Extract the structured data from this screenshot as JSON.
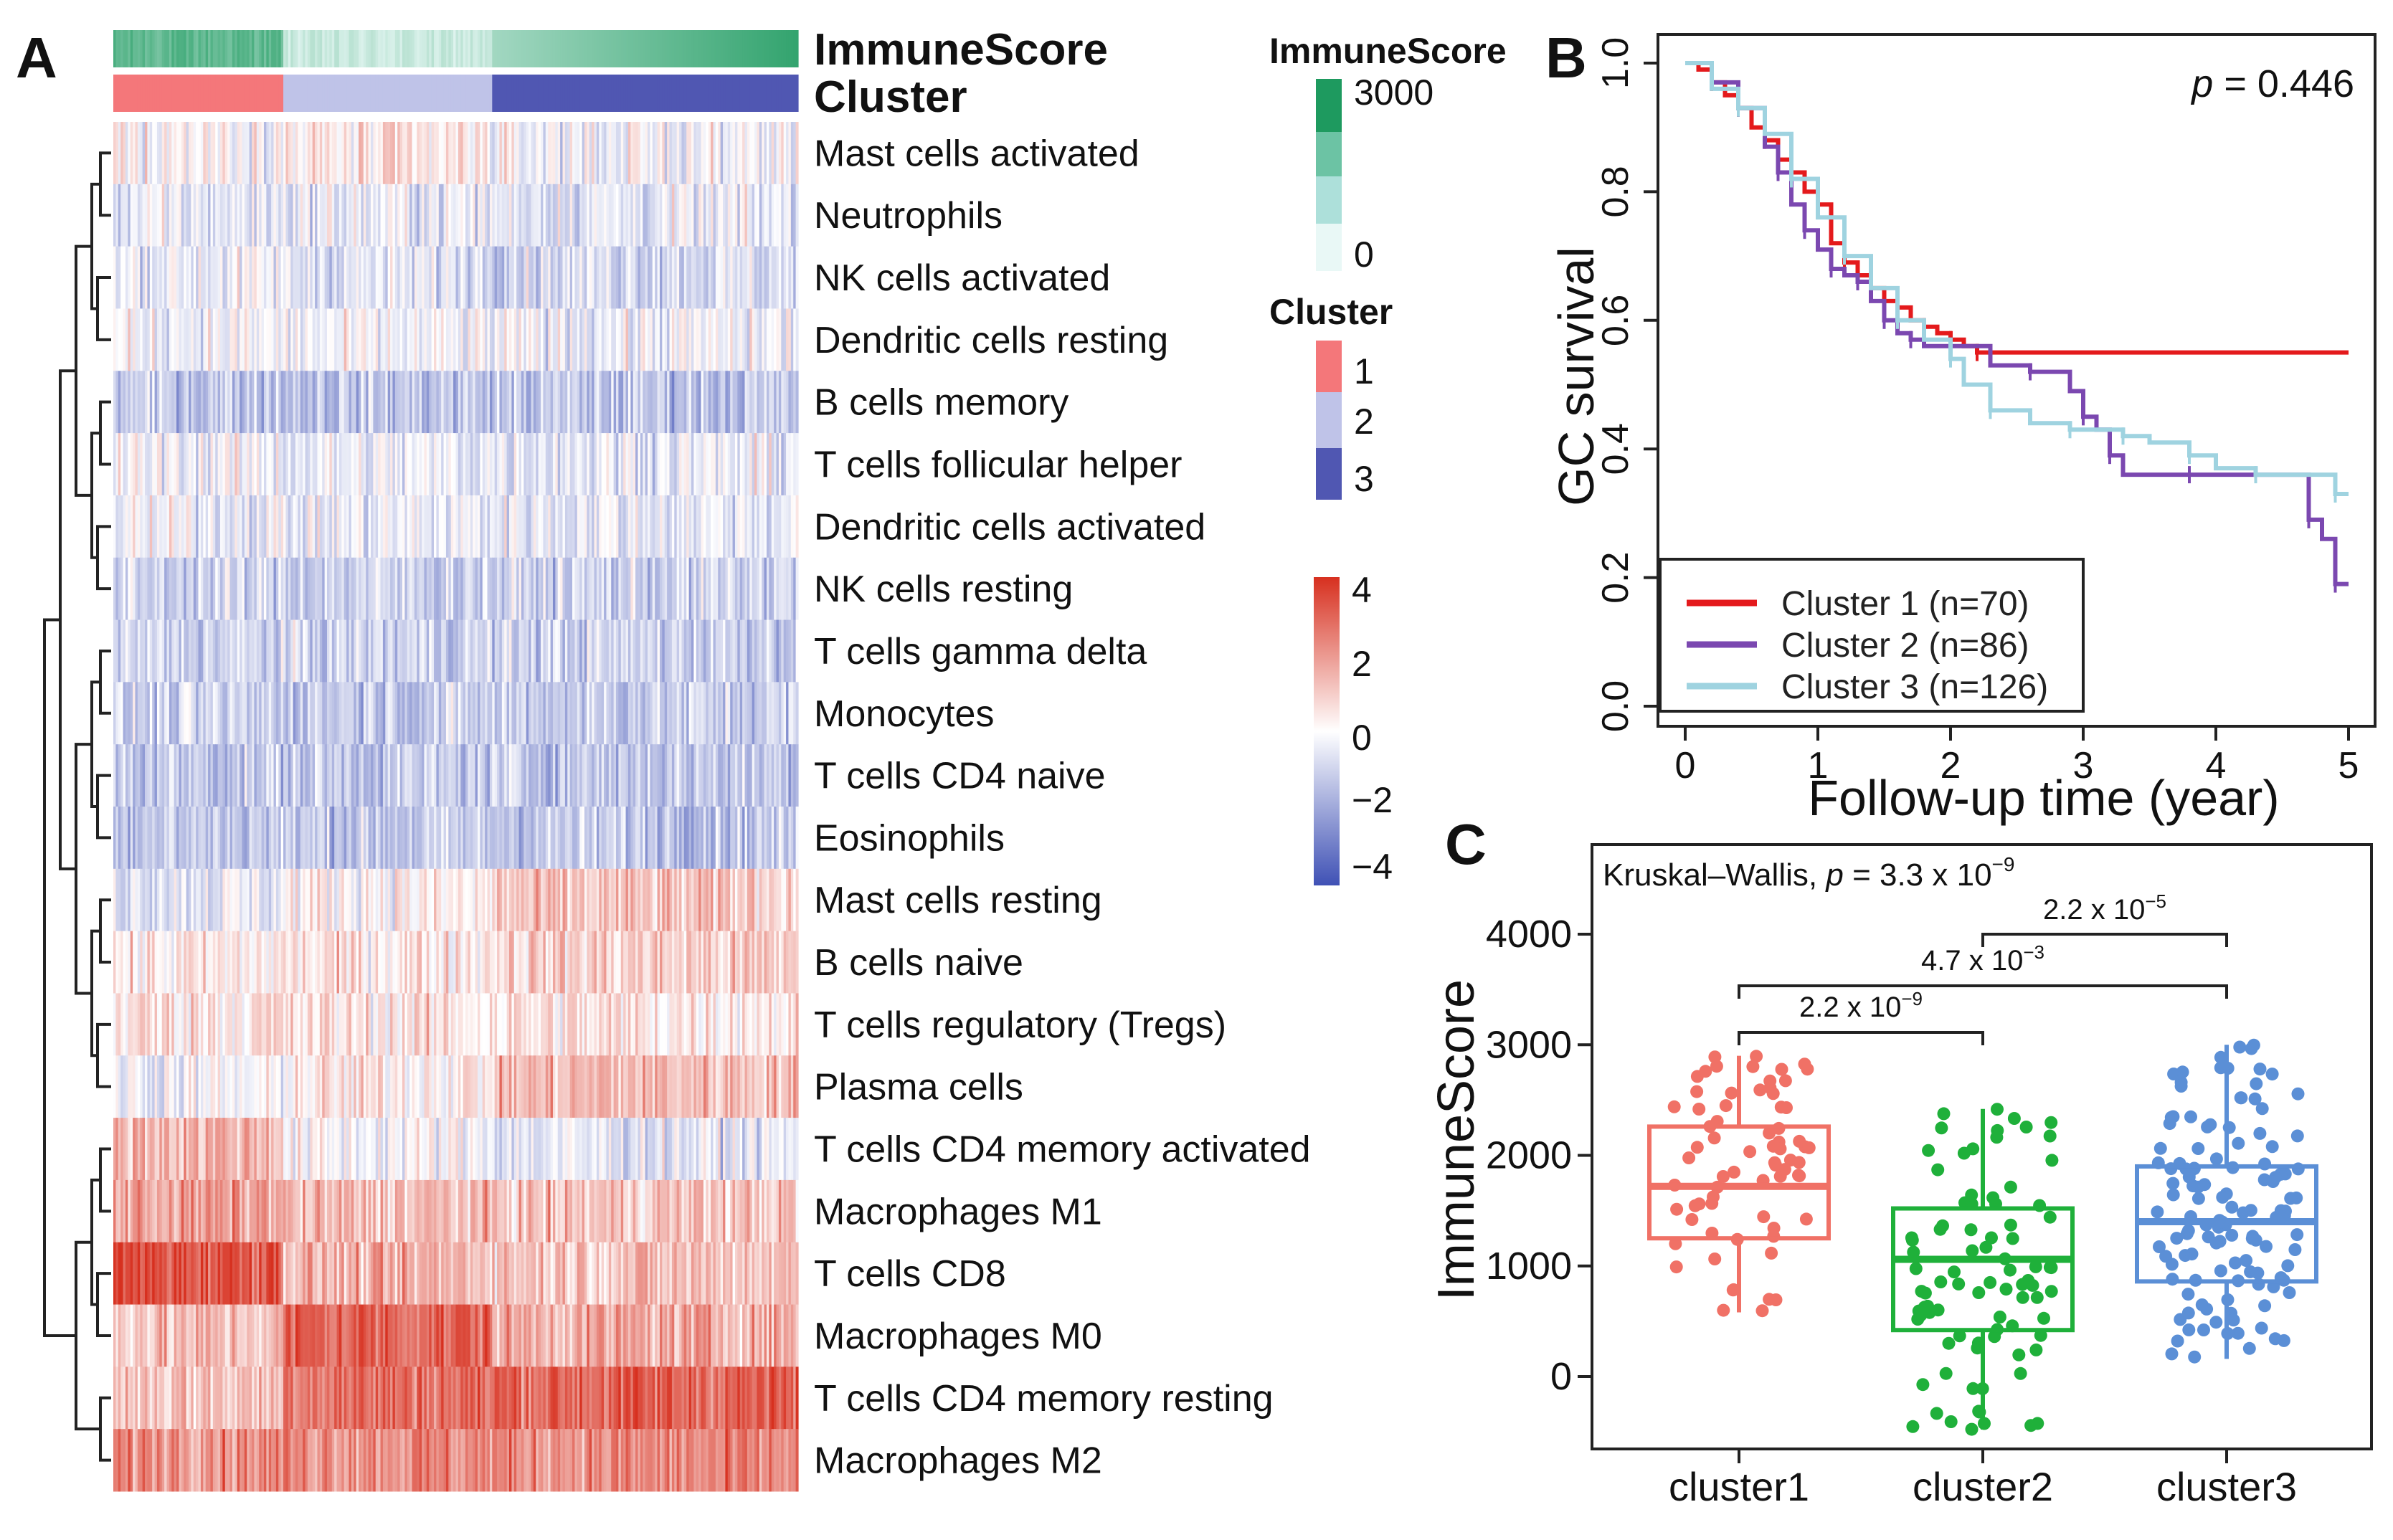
{
  "panel_labels": {
    "a": "A",
    "b": "B",
    "c": "C"
  },
  "colors": {
    "heat_low": "#3f51b5",
    "heat_mid": "#ffffff",
    "heat_high": "#d7301f",
    "immune_low": "#e9f8f6",
    "immune_high": "#1e9a5f",
    "cluster1": "#f4777a",
    "cluster2": "#bfc3e8",
    "cluster3": "#5057b2",
    "km_c1": "#e41a1c",
    "km_c2": "#7b48b0",
    "km_c3": "#9fd3e0",
    "box_c1": "#f07166",
    "box_c2": "#1fb03a",
    "box_c3": "#5b8fd6"
  },
  "chart_data": [
    {
      "id": "heatmap",
      "type": "heatmap",
      "annotation_labels": [
        "ImmuneScore",
        "Cluster"
      ],
      "cluster_sample_counts": [
        70,
        86,
        126
      ],
      "rows": [
        {
          "label": "Mast cells activated",
          "means": [
            0.2,
            0.3,
            -0.2
          ]
        },
        {
          "label": "Neutrophils",
          "means": [
            -0.5,
            -0.4,
            -0.5
          ]
        },
        {
          "label": "NK cells activated",
          "means": [
            -0.3,
            -0.6,
            -0.7
          ]
        },
        {
          "label": "Dendritic cells resting",
          "means": [
            -0.2,
            -0.3,
            -0.3
          ]
        },
        {
          "label": "B cells memory",
          "means": [
            -1.2,
            -1.3,
            -1.3
          ]
        },
        {
          "label": "T cells follicular helper",
          "means": [
            -0.2,
            -0.4,
            -0.4
          ]
        },
        {
          "label": "Dendritic cells activated",
          "means": [
            -0.3,
            -0.4,
            -0.4
          ]
        },
        {
          "label": "NK cells resting",
          "means": [
            -1.0,
            -1.0,
            -1.0
          ]
        },
        {
          "label": "T cells gamma delta",
          "means": [
            -1.0,
            -1.0,
            -1.0
          ]
        },
        {
          "label": "Monocytes",
          "means": [
            -1.1,
            -1.1,
            -1.1
          ]
        },
        {
          "label": "T cells CD4 naive",
          "means": [
            -1.2,
            -1.2,
            -1.2
          ]
        },
        {
          "label": "Eosinophils",
          "means": [
            -1.2,
            -1.2,
            -1.2
          ]
        },
        {
          "label": "Mast cells resting",
          "means": [
            -0.4,
            0.2,
            1.0
          ]
        },
        {
          "label": "B cells naive",
          "means": [
            0.3,
            0.5,
            0.9
          ]
        },
        {
          "label": "T cells regulatory (Tregs)",
          "means": [
            0.6,
            0.5,
            0.5
          ]
        },
        {
          "label": "Plasma cells",
          "means": [
            -0.2,
            0.4,
            1.3
          ]
        },
        {
          "label": "T cells CD4 memory activated",
          "means": [
            1.5,
            -0.1,
            -0.5
          ]
        },
        {
          "label": "Macrophages M1",
          "means": [
            1.8,
            1.2,
            1.1
          ]
        },
        {
          "label": "T cells CD8",
          "means": [
            3.4,
            1.4,
            1.2
          ]
        },
        {
          "label": "Macrophages M0",
          "means": [
            1.2,
            3.0,
            1.6
          ]
        },
        {
          "label": "T cells CD4 memory resting",
          "means": [
            1.2,
            2.8,
            3.0
          ]
        },
        {
          "label": "Macrophages M2",
          "means": [
            2.3,
            2.3,
            2.2
          ]
        }
      ],
      "legends": {
        "immune": {
          "title": "ImmuneScore",
          "ticks": [
            "3000",
            "0"
          ]
        },
        "cluster": {
          "title": "Cluster",
          "items": [
            "1",
            "2",
            "3"
          ]
        },
        "scale": {
          "ticks": [
            "4",
            "2",
            "0",
            "−2",
            "−4"
          ],
          "range": [
            -4,
            4
          ]
        }
      }
    },
    {
      "id": "km",
      "type": "line",
      "title": "",
      "xlabel": "Follow-up time (year)",
      "ylabel": "GC survival",
      "xlim": [
        0,
        5
      ],
      "ylim": [
        0,
        1
      ],
      "xticks": [
        "0",
        "1",
        "2",
        "3",
        "4",
        "5"
      ],
      "yticks": [
        "0.0",
        "0.2",
        "0.4",
        "0.6",
        "0.8",
        "1.0"
      ],
      "p_label": "p",
      "p_value": "= 0.446",
      "legend": [
        "Cluster 1 (n=70)",
        "Cluster 2 (n=86)",
        "Cluster 3 (n=126)"
      ],
      "series": [
        {
          "name": "Cluster 1",
          "points": [
            [
              0,
              1.0
            ],
            [
              0.1,
              0.99
            ],
            [
              0.2,
              0.97
            ],
            [
              0.3,
              0.95
            ],
            [
              0.4,
              0.93
            ],
            [
              0.5,
              0.9
            ],
            [
              0.6,
              0.88
            ],
            [
              0.7,
              0.85
            ],
            [
              0.8,
              0.83
            ],
            [
              0.9,
              0.8
            ],
            [
              1.0,
              0.78
            ],
            [
              1.1,
              0.72
            ],
            [
              1.2,
              0.69
            ],
            [
              1.3,
              0.67
            ],
            [
              1.4,
              0.65
            ],
            [
              1.5,
              0.63
            ],
            [
              1.6,
              0.62
            ],
            [
              1.7,
              0.6
            ],
            [
              1.8,
              0.59
            ],
            [
              1.9,
              0.58
            ],
            [
              2.0,
              0.57
            ],
            [
              2.1,
              0.56
            ],
            [
              2.2,
              0.55
            ],
            [
              5.0,
              0.55
            ]
          ]
        },
        {
          "name": "Cluster 2",
          "points": [
            [
              0,
              1.0
            ],
            [
              0.2,
              0.97
            ],
            [
              0.4,
              0.93
            ],
            [
              0.6,
              0.87
            ],
            [
              0.7,
              0.83
            ],
            [
              0.8,
              0.78
            ],
            [
              0.9,
              0.74
            ],
            [
              1.0,
              0.71
            ],
            [
              1.1,
              0.68
            ],
            [
              1.2,
              0.67
            ],
            [
              1.3,
              0.66
            ],
            [
              1.4,
              0.63
            ],
            [
              1.5,
              0.6
            ],
            [
              1.6,
              0.58
            ],
            [
              1.7,
              0.57
            ],
            [
              1.8,
              0.56
            ],
            [
              2.0,
              0.56
            ],
            [
              2.3,
              0.53
            ],
            [
              2.6,
              0.52
            ],
            [
              2.9,
              0.49
            ],
            [
              3.0,
              0.45
            ],
            [
              3.1,
              0.43
            ],
            [
              3.2,
              0.39
            ],
            [
              3.3,
              0.36
            ],
            [
              3.8,
              0.36
            ],
            [
              4.6,
              0.36
            ],
            [
              4.7,
              0.29
            ],
            [
              4.8,
              0.26
            ],
            [
              4.9,
              0.19
            ],
            [
              5.0,
              0.19
            ]
          ]
        },
        {
          "name": "Cluster 3",
          "points": [
            [
              0,
              1.0
            ],
            [
              0.2,
              0.96
            ],
            [
              0.4,
              0.93
            ],
            [
              0.6,
              0.89
            ],
            [
              0.8,
              0.82
            ],
            [
              1.0,
              0.76
            ],
            [
              1.2,
              0.7
            ],
            [
              1.4,
              0.65
            ],
            [
              1.6,
              0.6
            ],
            [
              1.8,
              0.57
            ],
            [
              2.0,
              0.54
            ],
            [
              2.1,
              0.5
            ],
            [
              2.3,
              0.46
            ],
            [
              2.6,
              0.44
            ],
            [
              2.9,
              0.43
            ],
            [
              3.0,
              0.43
            ],
            [
              3.3,
              0.42
            ],
            [
              3.5,
              0.41
            ],
            [
              3.8,
              0.39
            ],
            [
              4.0,
              0.37
            ],
            [
              4.3,
              0.36
            ],
            [
              4.7,
              0.36
            ],
            [
              4.9,
              0.33
            ],
            [
              5.0,
              0.33
            ]
          ]
        }
      ]
    },
    {
      "id": "boxplot",
      "type": "scatter",
      "title": "Kruskal–Wallis,",
      "title_p_label": "p",
      "title_p_value": "= 3.3 x 10",
      "title_p_exp": "−9",
      "xlabel": "",
      "ylabel": "ImmuneScore",
      "ylim": [
        -700,
        4800
      ],
      "yticks": [
        0,
        1000,
        2000,
        3000,
        4000
      ],
      "ytick_labels": [
        "0",
        "1000",
        "2000",
        "3000",
        "4000"
      ],
      "categories": [
        "cluster1",
        "cluster2",
        "cluster3"
      ],
      "boxes": [
        {
          "name": "cluster1",
          "whisker_low": 580,
          "q1": 1250,
          "median": 1720,
          "q3": 2260,
          "whisker_high": 2900,
          "n": 70
        },
        {
          "name": "cluster2",
          "whisker_low": -480,
          "q1": 420,
          "median": 1060,
          "q3": 1520,
          "whisker_high": 2420,
          "n": 86
        },
        {
          "name": "cluster3",
          "whisker_low": 160,
          "q1": 860,
          "median": 1400,
          "q3": 1900,
          "whisker_high": 3000,
          "n": 126
        }
      ],
      "comparisons": [
        {
          "pair": [
            1,
            2
          ],
          "label": "2.2 x 10",
          "exp": "−9"
        },
        {
          "pair": [
            1,
            3
          ],
          "label": "4.7 x 10",
          "exp": "−3"
        },
        {
          "pair": [
            2,
            3
          ],
          "label": "2.2 x 10",
          "exp": "−5"
        }
      ]
    }
  ]
}
